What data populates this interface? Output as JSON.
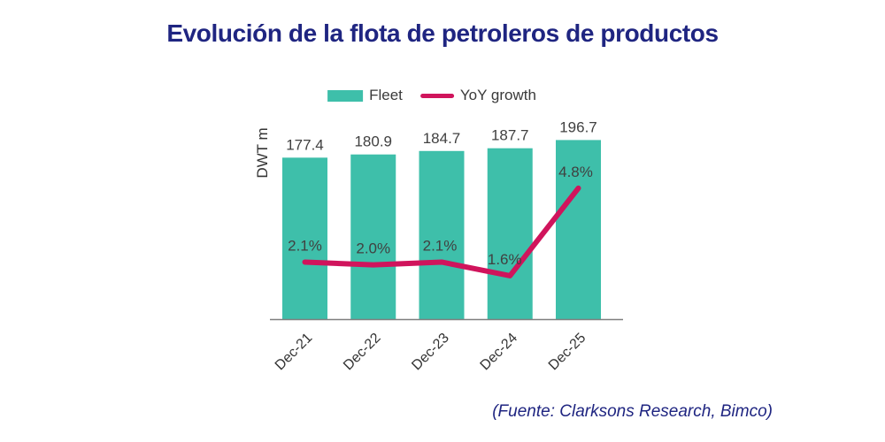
{
  "title": "Evolución de la flota de petroleros de productos",
  "legend": {
    "fleet": "Fleet",
    "yoy": "YoY growth"
  },
  "source": "(Fuente: Clarksons Research, Bimco)",
  "chart_data": {
    "type": "bar",
    "subtype": "bar+line combo",
    "title": "Evolución de la flota de petroleros de productos",
    "categories": [
      "Dec-21",
      "Dec-22",
      "Dec-23",
      "Dec-24",
      "Dec-25"
    ],
    "series": [
      {
        "name": "Fleet",
        "type": "bar",
        "axis": "left",
        "unit": "DWT m",
        "values": [
          177.4,
          180.9,
          184.7,
          187.7,
          196.7
        ],
        "labels": [
          "177.4",
          "180.9",
          "184.7",
          "187.7",
          "196.7"
        ]
      },
      {
        "name": "YoY growth",
        "type": "line",
        "axis": "right",
        "unit": "%",
        "values": [
          2.1,
          2.0,
          2.1,
          1.6,
          4.8
        ],
        "labels": [
          "2.1%",
          "2.0%",
          "2.1%",
          "1.6%",
          "4.8%"
        ]
      }
    ],
    "xlabel": "",
    "ylabel": "DWT m",
    "ylim": [
      0,
      200
    ],
    "y2lim": [
      0,
      6.67
    ],
    "grid": false,
    "legend_position": "top-center",
    "colors": {
      "fleet": "#3EBFAA",
      "yoy": "#D0145C",
      "title": "#1F2581",
      "label": "#404040",
      "axis": "#7F7F7F"
    }
  }
}
